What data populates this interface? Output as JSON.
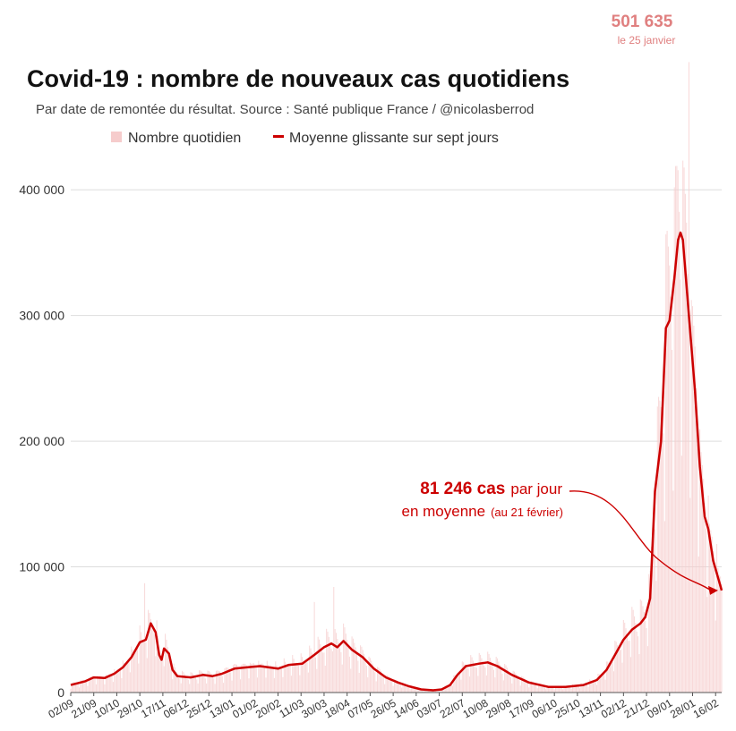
{
  "chart_data": {
    "type": "bar",
    "title": "Covid-19 : nombre de nouveaux cas quotidiens",
    "subtitle": "Par date de remontée du résultat. Source : Santé publique France / @nicolasberrod",
    "legend": {
      "placement": "top-center",
      "entries": [
        {
          "label": "Nombre quotidien",
          "color": "#f6cccc",
          "kind": "bar"
        },
        {
          "label": "Moyenne glissante sur sept jours",
          "color": "#cc0000",
          "kind": "line"
        }
      ]
    },
    "xlabel": "",
    "ylabel": "",
    "x_range": [
      "2020-09-02",
      "2022-02-21"
    ],
    "ylim": [
      0,
      430000
    ],
    "y_ticks": [
      {
        "value": 0,
        "label": "0"
      },
      {
        "value": 100000,
        "label": "100 000"
      },
      {
        "value": 200000,
        "label": "200 000"
      },
      {
        "value": 300000,
        "label": "300 000"
      },
      {
        "value": 400000,
        "label": "400 000"
      }
    ],
    "x_ticks": [
      {
        "date": "2020-09-02",
        "label": "02/09"
      },
      {
        "date": "2020-09-21",
        "label": "21/09"
      },
      {
        "date": "2020-10-10",
        "label": "10/10"
      },
      {
        "date": "2020-10-29",
        "label": "29/10"
      },
      {
        "date": "2020-11-17",
        "label": "17/11"
      },
      {
        "date": "2020-12-06",
        "label": "06/12"
      },
      {
        "date": "2020-12-25",
        "label": "25/12"
      },
      {
        "date": "2021-01-13",
        "label": "13/01"
      },
      {
        "date": "2021-02-01",
        "label": "01/02"
      },
      {
        "date": "2021-02-20",
        "label": "20/02"
      },
      {
        "date": "2021-03-11",
        "label": "11/03"
      },
      {
        "date": "2021-03-30",
        "label": "30/03"
      },
      {
        "date": "2021-04-18",
        "label": "18/04"
      },
      {
        "date": "2021-05-07",
        "label": "07/05"
      },
      {
        "date": "2021-05-26",
        "label": "26/05"
      },
      {
        "date": "2021-06-14",
        "label": "14/06"
      },
      {
        "date": "2021-07-03",
        "label": "03/07"
      },
      {
        "date": "2021-07-22",
        "label": "22/07"
      },
      {
        "date": "2021-08-10",
        "label": "10/08"
      },
      {
        "date": "2021-08-29",
        "label": "29/08"
      },
      {
        "date": "2021-09-17",
        "label": "17/09"
      },
      {
        "date": "2021-10-06",
        "label": "06/10"
      },
      {
        "date": "2021-10-25",
        "label": "25/10"
      },
      {
        "date": "2021-11-13",
        "label": "13/11"
      },
      {
        "date": "2021-12-02",
        "label": "02/12"
      },
      {
        "date": "2021-12-21",
        "label": "21/12"
      },
      {
        "date": "2022-01-09",
        "label": "09/01"
      },
      {
        "date": "2022-01-28",
        "label": "28/01"
      },
      {
        "date": "2022-02-16",
        "label": "16/02"
      }
    ],
    "grid": true,
    "series": [
      {
        "name": "Moyenne glissante sur sept jours",
        "type": "line",
        "color": "#cc0000",
        "points": [
          [
            "2020-09-02",
            6000
          ],
          [
            "2020-09-14",
            9000
          ],
          [
            "2020-09-21",
            12000
          ],
          [
            "2020-09-30",
            11500
          ],
          [
            "2020-10-08",
            15000
          ],
          [
            "2020-10-15",
            20000
          ],
          [
            "2020-10-22",
            28000
          ],
          [
            "2020-10-29",
            40000
          ],
          [
            "2020-11-03",
            42000
          ],
          [
            "2020-11-07",
            55000
          ],
          [
            "2020-11-11",
            48000
          ],
          [
            "2020-11-14",
            30000
          ],
          [
            "2020-11-16",
            26000
          ],
          [
            "2020-11-18",
            35000
          ],
          [
            "2020-11-22",
            31000
          ],
          [
            "2020-11-25",
            18000
          ],
          [
            "2020-11-29",
            13000
          ],
          [
            "2020-12-10",
            12000
          ],
          [
            "2020-12-20",
            14000
          ],
          [
            "2020-12-28",
            13000
          ],
          [
            "2021-01-05",
            15000
          ],
          [
            "2021-01-15",
            19000
          ],
          [
            "2021-01-25",
            20000
          ],
          [
            "2021-02-05",
            21000
          ],
          [
            "2021-02-20",
            19000
          ],
          [
            "2021-03-01",
            22000
          ],
          [
            "2021-03-12",
            23000
          ],
          [
            "2021-03-22",
            30000
          ],
          [
            "2021-03-30",
            36000
          ],
          [
            "2021-04-05",
            39000
          ],
          [
            "2021-04-10",
            36000
          ],
          [
            "2021-04-15",
            41000
          ],
          [
            "2021-04-22",
            34000
          ],
          [
            "2021-05-01",
            28000
          ],
          [
            "2021-05-10",
            19000
          ],
          [
            "2021-05-20",
            12000
          ],
          [
            "2021-05-30",
            8000
          ],
          [
            "2021-06-08",
            5000
          ],
          [
            "2021-06-18",
            2500
          ],
          [
            "2021-06-28",
            1800
          ],
          [
            "2021-07-05",
            2500
          ],
          [
            "2021-07-12",
            6000
          ],
          [
            "2021-07-18",
            14000
          ],
          [
            "2021-07-25",
            21000
          ],
          [
            "2021-08-05",
            23000
          ],
          [
            "2021-08-12",
            24000
          ],
          [
            "2021-08-20",
            21000
          ],
          [
            "2021-09-01",
            14000
          ],
          [
            "2021-09-15",
            8000
          ],
          [
            "2021-10-01",
            4500
          ],
          [
            "2021-10-15",
            4500
          ],
          [
            "2021-10-30",
            6000
          ],
          [
            "2021-11-10",
            10000
          ],
          [
            "2021-11-18",
            18000
          ],
          [
            "2021-11-25",
            30000
          ],
          [
            "2021-12-02",
            42000
          ],
          [
            "2021-12-09",
            50000
          ],
          [
            "2021-12-16",
            55000
          ],
          [
            "2021-12-20",
            60000
          ],
          [
            "2021-12-24",
            75000
          ],
          [
            "2021-12-28",
            160000
          ],
          [
            "2022-01-02",
            200000
          ],
          [
            "2022-01-06",
            290000
          ],
          [
            "2022-01-09",
            296000
          ],
          [
            "2022-01-13",
            330000
          ],
          [
            "2022-01-16",
            360000
          ],
          [
            "2022-01-18",
            366000
          ],
          [
            "2022-01-20",
            360000
          ],
          [
            "2022-01-25",
            300000
          ],
          [
            "2022-01-30",
            240000
          ],
          [
            "2022-02-03",
            180000
          ],
          [
            "2022-02-07",
            140000
          ],
          [
            "2022-02-10",
            130000
          ],
          [
            "2022-02-14",
            105000
          ],
          [
            "2022-02-21",
            81246
          ]
        ]
      },
      {
        "name": "Nombre quotidien",
        "type": "bar",
        "color": "#f6cccc",
        "note_points": [
          [
            "2020-11-02",
            87000
          ],
          [
            "2021-03-22",
            72000
          ],
          [
            "2021-04-07",
            84000
          ],
          [
            "2022-01-25",
            501635
          ]
        ]
      }
    ],
    "annotations": {
      "peak": {
        "value_label": "501 635",
        "date_label": "le 25 janvier",
        "date": "2022-01-25",
        "value": 501635
      },
      "average": {
        "value_label": "81 246 cas",
        "unit_label": "par jour",
        "line2": "en moyenne",
        "line2_small": "(au 21 février)",
        "date": "2022-02-21",
        "value": 81246
      }
    }
  }
}
